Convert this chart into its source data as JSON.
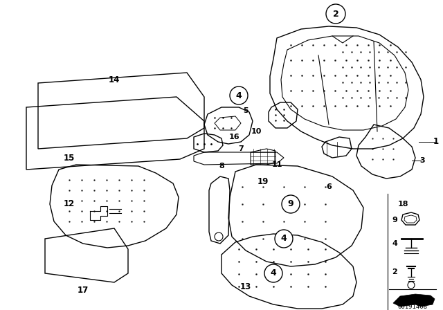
{
  "bg_color": "#ffffff",
  "fig_width": 6.4,
  "fig_height": 4.48,
  "dpi": 100,
  "catalog_number": "00191408",
  "line_color": "#000000",
  "text_color": "#000000"
}
